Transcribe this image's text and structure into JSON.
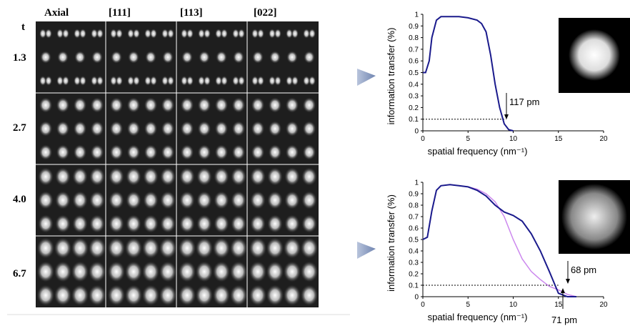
{
  "image_grid": {
    "row_header": "t",
    "columns": [
      "Axial",
      "[111]",
      "[113]",
      "[022]"
    ],
    "rows": [
      "1.3",
      "2.7",
      "4.0",
      "6.7"
    ]
  },
  "chart_data": [
    {
      "type": "line",
      "xlabel": "spatial frequency (nm⁻¹)",
      "ylabel": "information transfer (%)",
      "x": [
        0,
        0.3,
        0.7,
        1,
        1.5,
        2,
        3,
        4,
        5,
        6,
        6.5,
        7,
        7.5,
        8,
        8.5,
        9,
        9.5,
        10
      ],
      "series": [
        {
          "color": "#1a1a8c",
          "values": [
            0.5,
            0.5,
            0.6,
            0.8,
            0.95,
            0.98,
            0.98,
            0.98,
            0.97,
            0.95,
            0.92,
            0.85,
            0.65,
            0.4,
            0.2,
            0.06,
            0.01,
            0
          ]
        }
      ],
      "xlim": [
        0,
        20
      ],
      "xticks": [
        0,
        5,
        10,
        15,
        20
      ],
      "ylim": [
        0,
        1
      ],
      "yticks": [
        0,
        0.1,
        0.2,
        0.3,
        0.4,
        0.5,
        0.6,
        0.7,
        0.8,
        0.9,
        1
      ],
      "threshold": 0.1,
      "annotations": [
        "117 pm"
      ]
    },
    {
      "type": "line",
      "xlabel": "spatial frequency (nm⁻¹)",
      "ylabel": "information transfer (%)",
      "x": [
        0,
        0.5,
        1,
        1.5,
        2,
        3,
        4,
        5,
        6,
        7,
        8,
        9,
        10,
        11,
        12,
        13,
        14,
        15,
        16,
        17
      ],
      "series": [
        {
          "color": "#cc88ee",
          "values": [
            0.5,
            0.52,
            0.75,
            0.93,
            0.97,
            0.98,
            0.97,
            0.96,
            0.94,
            0.9,
            0.83,
            0.7,
            0.5,
            0.33,
            0.22,
            0.15,
            0.09,
            0.06,
            0.02,
            0
          ]
        },
        {
          "color": "#1a1a8c",
          "values": [
            0.5,
            0.52,
            0.75,
            0.93,
            0.97,
            0.98,
            0.97,
            0.96,
            0.93,
            0.88,
            0.8,
            0.74,
            0.71,
            0.66,
            0.55,
            0.4,
            0.22,
            0.03,
            0,
            0
          ]
        }
      ],
      "xlim": [
        0,
        20
      ],
      "xticks": [
        0,
        5,
        10,
        15,
        20
      ],
      "ylim": [
        0,
        1
      ],
      "yticks": [
        0,
        0.1,
        0.2,
        0.3,
        0.4,
        0.5,
        0.6,
        0.7,
        0.8,
        0.9,
        1
      ],
      "threshold": 0.1,
      "annotations": [
        "68 pm",
        "71 pm"
      ]
    }
  ]
}
